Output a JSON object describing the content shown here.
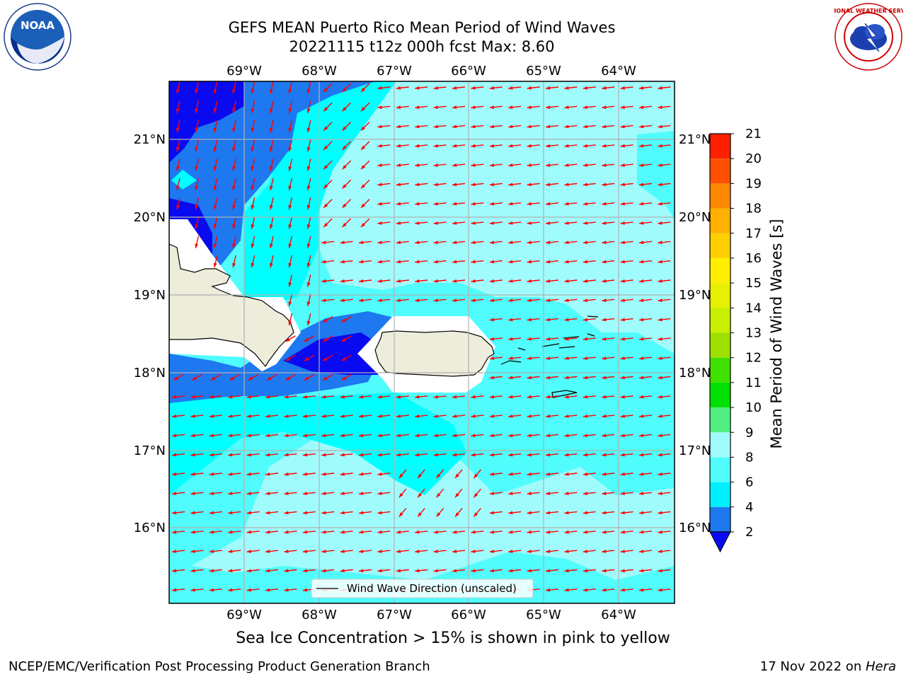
{
  "title": {
    "line1": "GEFS MEAN Puerto Rico Mean Period of Wind Waves",
    "line2": "20221115 t12z 000h fcst   Max: 8.60"
  },
  "map": {
    "lon_labels": [
      "69°W",
      "68°W",
      "67°W",
      "66°W",
      "65°W",
      "64°W"
    ],
    "lat_labels": [
      "21°N",
      "20°N",
      "19°N",
      "18°N",
      "17°N",
      "16°N"
    ],
    "legend_label": "Wind Wave Direction (unscaled)",
    "colors": {
      "deep_blue": "#0a0af0",
      "blue": "#1e78f0",
      "cyan": "#00ffff",
      "light_cyan": "#50fcfc",
      "pale_cyan": "#a0fcfc",
      "land": "#eeeddc",
      "arrow": "#ff0000",
      "grid": "#b0b0b0"
    }
  },
  "colorbar": {
    "label": "Mean Period of Wind Waves [s]",
    "ticks": [
      "2",
      "4",
      "6",
      "8",
      "9",
      "10",
      "11",
      "12",
      "13",
      "14",
      "15",
      "16",
      "17",
      "18",
      "19",
      "20",
      "21"
    ],
    "colors": [
      "#1e78f0",
      "#00f0ff",
      "#50fcfc",
      "#a0fcfc",
      "#50f080",
      "#00e000",
      "#40e000",
      "#a0e000",
      "#c8f000",
      "#e6f000",
      "#fff000",
      "#ffd000",
      "#ffb000",
      "#ff8800",
      "#ff5000",
      "#ff2000",
      "#ff0000"
    ],
    "under_color": "#0a0af0"
  },
  "caption": "Sea Ice Concentration > 15% is shown in pink to yellow",
  "footer": {
    "left": "NCEP/EMC/Verification Post Processing Product Generation Branch",
    "right_date": "17 Nov 2022 on ",
    "right_machine": "Hera"
  },
  "logos": {
    "noaa_text": "NOAA",
    "nws_text": "NATIONAL WEATHER SERVICE"
  }
}
